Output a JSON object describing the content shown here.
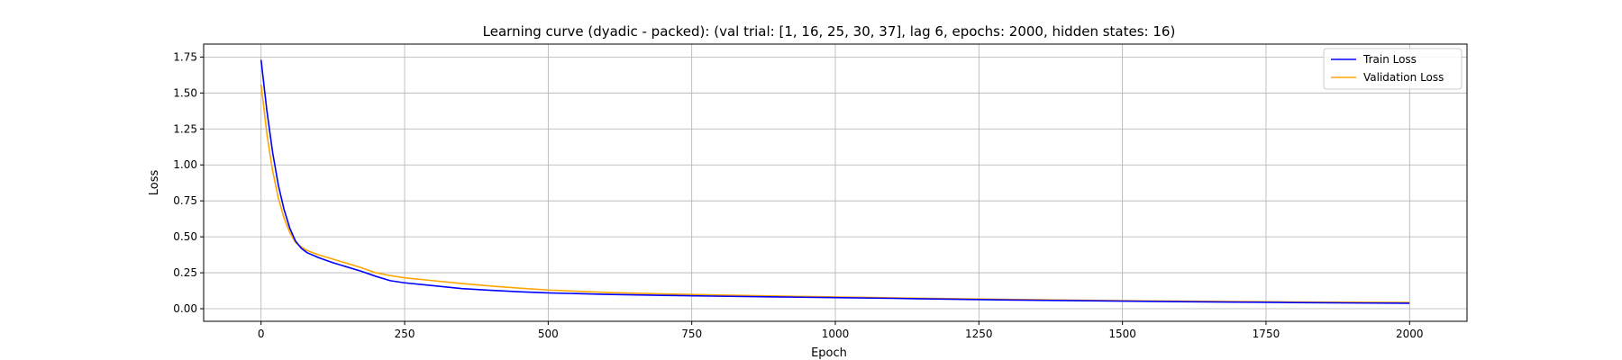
{
  "chart_data": {
    "type": "line",
    "title": "Learning curve (dyadic - packed): (val trial: [1, 16, 25, 30, 37], lag 6, epochs: 2000, hidden states: 16)",
    "xlabel": "Epoch",
    "ylabel": "Loss",
    "xlim": [
      -100,
      2100
    ],
    "ylim": [
      -0.0875,
      1.84
    ],
    "xticks": [
      0,
      250,
      500,
      750,
      1000,
      1250,
      1500,
      1750,
      2000
    ],
    "xtick_labels": [
      "0",
      "250",
      "500",
      "750",
      "1000",
      "1250",
      "1500",
      "1750",
      "2000"
    ],
    "yticks": [
      0.0,
      0.25,
      0.5,
      0.75,
      1.0,
      1.25,
      1.5,
      1.75
    ],
    "ytick_labels": [
      "0.00",
      "0.25",
      "0.50",
      "0.75",
      "1.00",
      "1.25",
      "1.50",
      "1.75"
    ],
    "grid": true,
    "legend_position": "top-right",
    "series": [
      {
        "name": "Train Loss",
        "color": "#0000ff",
        "x": [
          0,
          10,
          20,
          30,
          40,
          50,
          60,
          70,
          80,
          100,
          125,
          150,
          175,
          200,
          225,
          250,
          300,
          350,
          400,
          450,
          500,
          600,
          700,
          800,
          900,
          1000,
          1100,
          1200,
          1300,
          1400,
          1500,
          1600,
          1700,
          1800,
          1900,
          2000
        ],
        "y": [
          1.73,
          1.38,
          1.09,
          0.86,
          0.69,
          0.56,
          0.47,
          0.42,
          0.39,
          0.355,
          0.32,
          0.29,
          0.26,
          0.225,
          0.195,
          0.18,
          0.16,
          0.14,
          0.128,
          0.118,
          0.11,
          0.1,
          0.093,
          0.087,
          0.082,
          0.077,
          0.072,
          0.066,
          0.061,
          0.057,
          0.053,
          0.049,
          0.046,
          0.043,
          0.04,
          0.038
        ]
      },
      {
        "name": "Validation Loss",
        "color": "#ffa500",
        "x": [
          0,
          10,
          20,
          30,
          40,
          50,
          60,
          70,
          80,
          100,
          125,
          150,
          175,
          200,
          225,
          250,
          300,
          350,
          400,
          450,
          500,
          600,
          700,
          800,
          900,
          1000,
          1100,
          1200,
          1300,
          1400,
          1500,
          1600,
          1700,
          1800,
          1900,
          2000
        ],
        "y": [
          1.56,
          1.22,
          0.96,
          0.77,
          0.63,
          0.53,
          0.46,
          0.43,
          0.405,
          0.375,
          0.345,
          0.315,
          0.285,
          0.25,
          0.23,
          0.215,
          0.195,
          0.175,
          0.158,
          0.143,
          0.13,
          0.113,
          0.103,
          0.095,
          0.088,
          0.082,
          0.076,
          0.07,
          0.065,
          0.06,
          0.056,
          0.053,
          0.05,
          0.047,
          0.045,
          0.044
        ]
      }
    ]
  }
}
